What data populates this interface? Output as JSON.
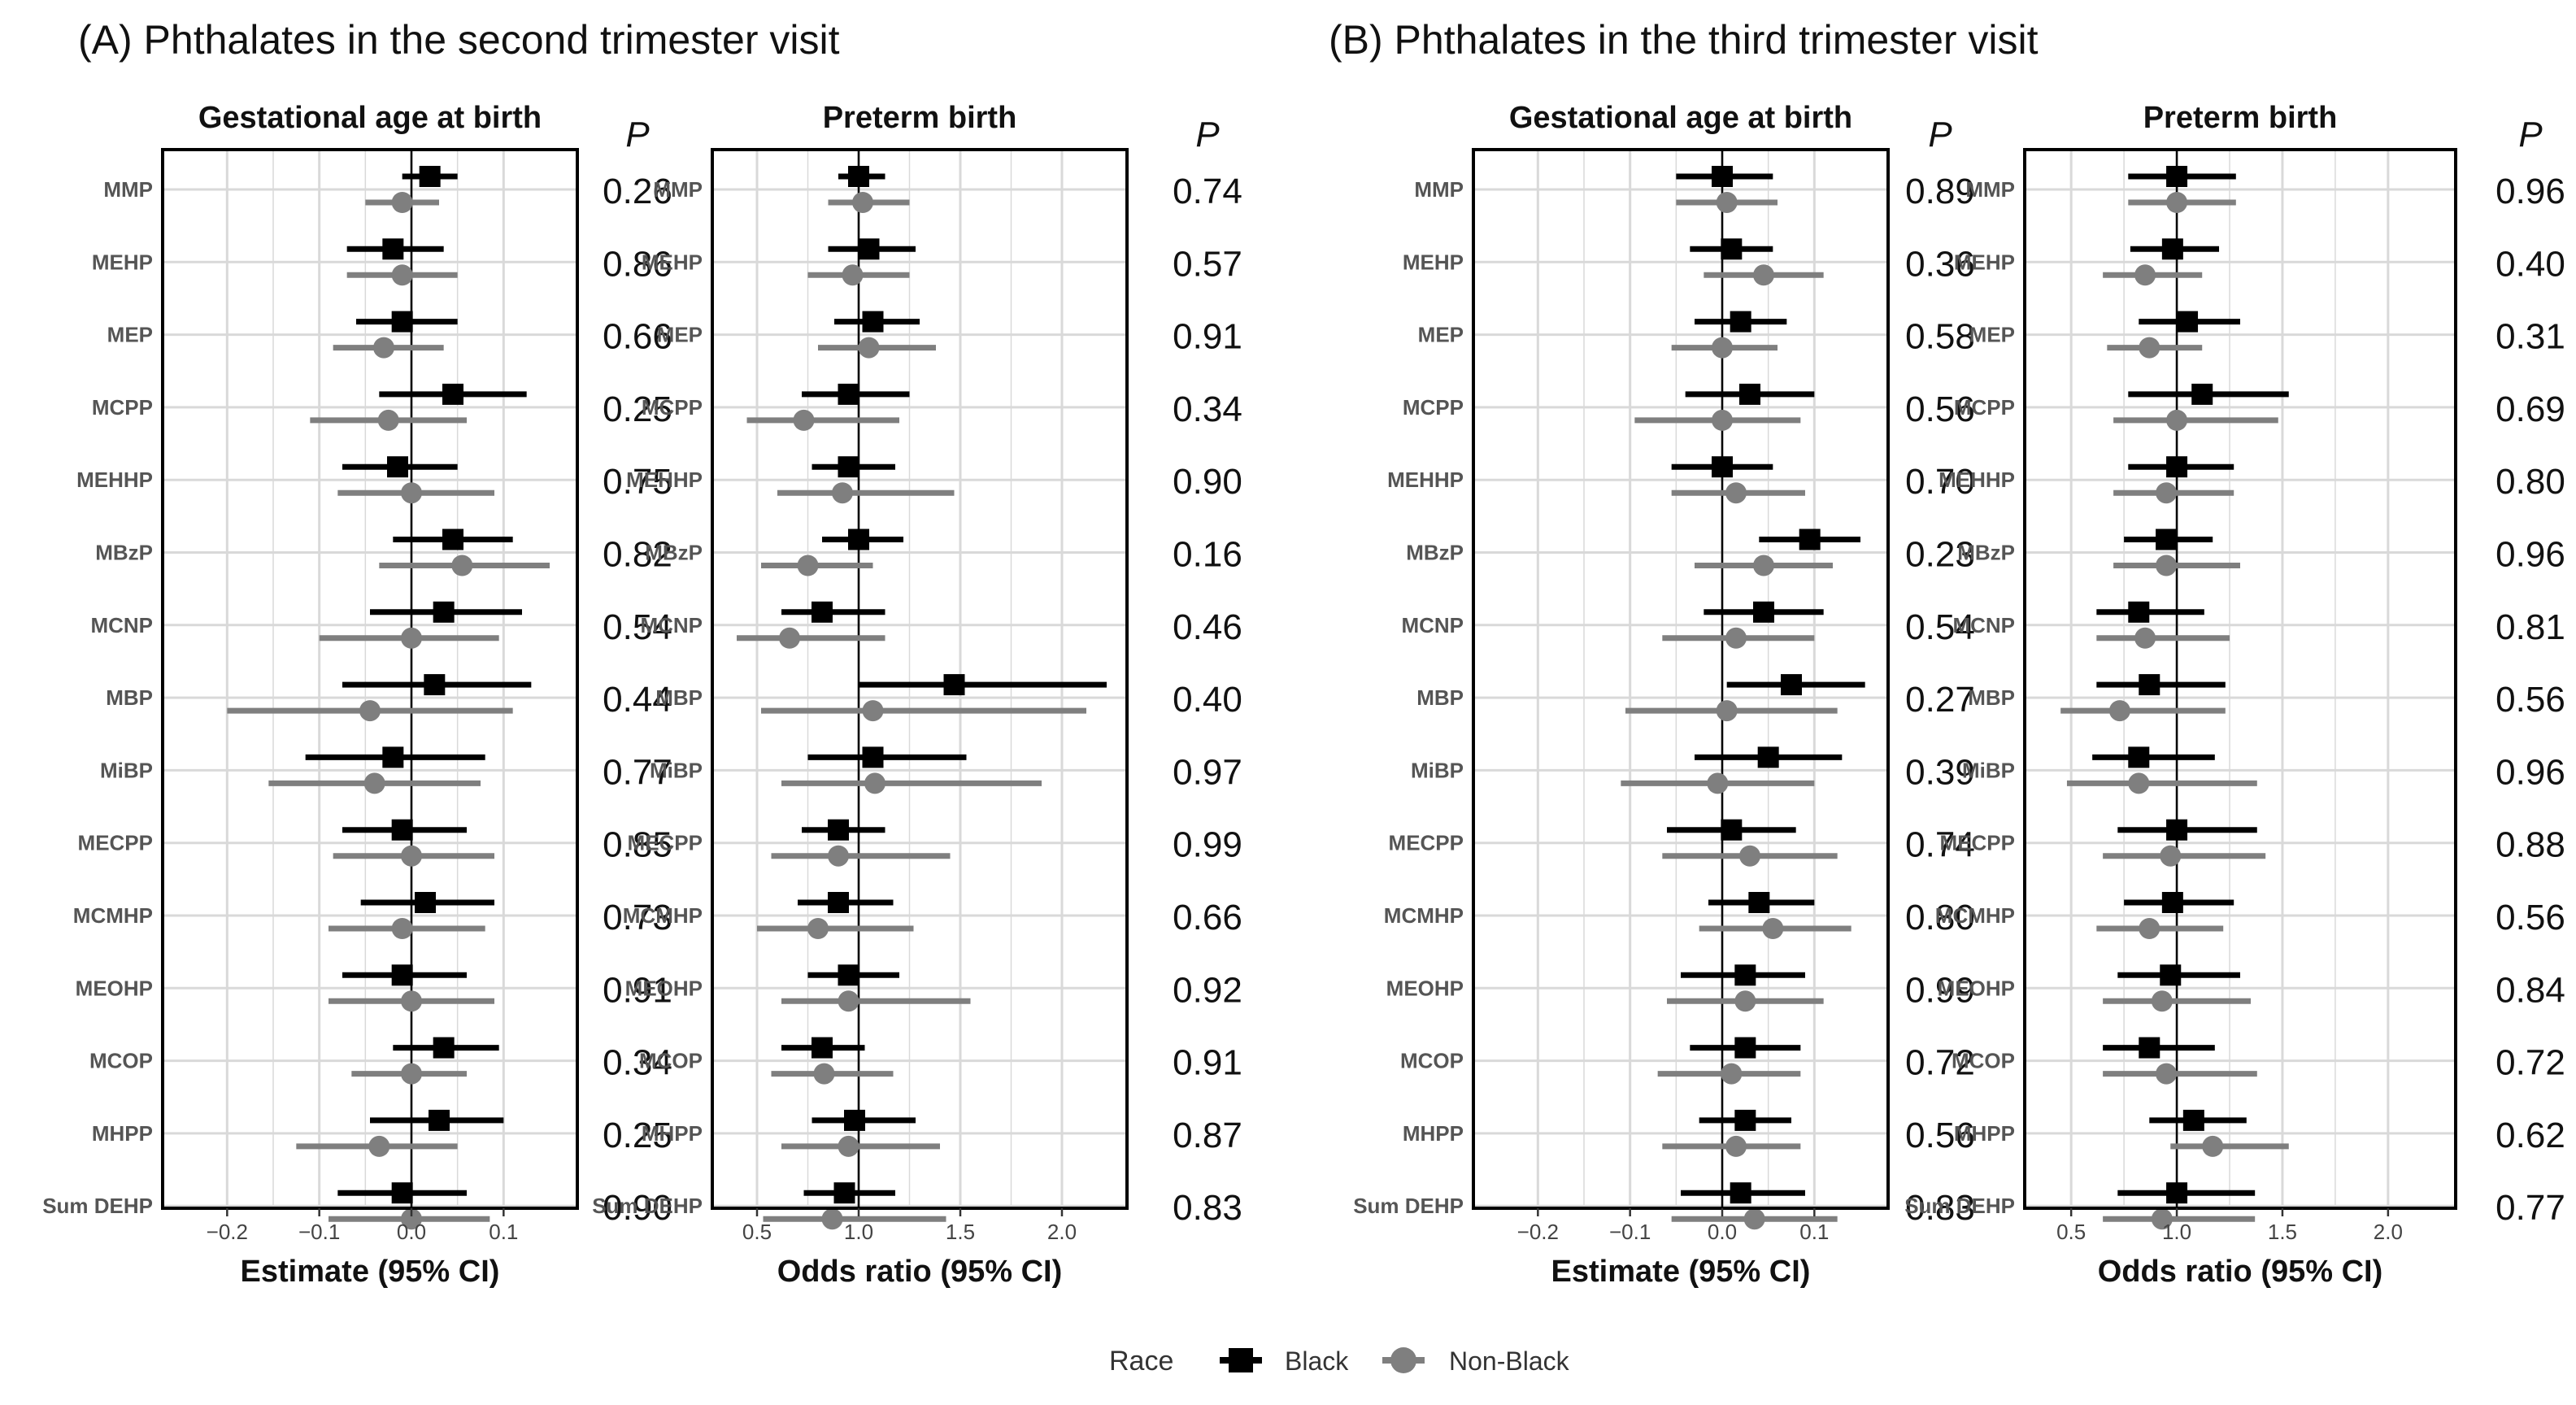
{
  "labels": {
    "panel_a_title": "(A) Phthalates in the second trimester visit",
    "panel_b_title": "(B) Phthalates in the third trimester visit",
    "gest_title": "Gestational age at birth",
    "preterm_title": "Preterm birth",
    "p_header": "P",
    "estimate_xlabel": "Estimate (95% CI)",
    "odds_xlabel": "Odds ratio (95% CI)",
    "legend_title": "Race",
    "legend_black": "Black",
    "legend_nonblack": "Non-Black"
  },
  "colors": {
    "black_series": "#000000",
    "nonblack_series": "#7f7f7f",
    "grid": "#d9d9d9"
  },
  "chart_data": [
    {
      "type": "forest",
      "panel": "A",
      "title": "Gestational age at birth",
      "xlabel": "Estimate (95% CI)",
      "xlim": [
        -0.27,
        0.18
      ],
      "xticks": [
        -0.2,
        -0.1,
        0.0,
        0.1
      ],
      "xtick_labels": [
        "−0.2",
        "−0.1",
        "0.0",
        "0.1"
      ],
      "ref": 0,
      "categories": [
        "MMP",
        "MEHP",
        "MEP",
        "MCPP",
        "MEHHP",
        "MBzP",
        "MCNP",
        "MBP",
        "MiBP",
        "MECPP",
        "MCMHP",
        "MEOHP",
        "MCOP",
        "MHPP",
        "Sum DEHP"
      ],
      "series": [
        {
          "name": "Black",
          "est": [
            0.02,
            -0.02,
            -0.01,
            0.045,
            -0.015,
            0.045,
            0.035,
            0.025,
            -0.02,
            -0.01,
            0.015,
            -0.01,
            0.035,
            0.03,
            -0.01
          ],
          "lo": [
            -0.01,
            -0.07,
            -0.06,
            -0.035,
            -0.075,
            -0.02,
            -0.045,
            -0.075,
            -0.115,
            -0.075,
            -0.055,
            -0.075,
            -0.02,
            -0.045,
            -0.08
          ],
          "hi": [
            0.05,
            0.035,
            0.05,
            0.125,
            0.05,
            0.11,
            0.12,
            0.13,
            0.08,
            0.06,
            0.09,
            0.06,
            0.095,
            0.1,
            0.06
          ]
        },
        {
          "name": "Non-Black",
          "est": [
            -0.01,
            -0.01,
            -0.03,
            -0.025,
            0.0,
            0.055,
            0.0,
            -0.045,
            -0.04,
            0.0,
            -0.01,
            0.0,
            0.0,
            -0.035,
            0.0
          ],
          "lo": [
            -0.05,
            -0.07,
            -0.085,
            -0.11,
            -0.08,
            -0.035,
            -0.1,
            -0.2,
            -0.155,
            -0.085,
            -0.09,
            -0.09,
            -0.065,
            -0.125,
            -0.09
          ],
          "hi": [
            0.03,
            0.05,
            0.035,
            0.06,
            0.09,
            0.15,
            0.095,
            0.11,
            0.075,
            0.09,
            0.08,
            0.09,
            0.06,
            0.05,
            0.085
          ]
        }
      ],
      "p": [
        "0.26",
        "0.86",
        "0.66",
        "0.25",
        "0.75",
        "0.82",
        "0.54",
        "0.44",
        "0.77",
        "0.85",
        "0.73",
        "0.91",
        "0.34",
        "0.25",
        "0.90"
      ]
    },
    {
      "type": "forest",
      "panel": "A",
      "title": "Preterm birth",
      "xlabel": "Odds ratio (95% CI)",
      "xlim": [
        0.28,
        2.32
      ],
      "xticks": [
        0.5,
        1.0,
        1.5,
        2.0
      ],
      "xtick_labels": [
        "0.5",
        "1.0",
        "1.5",
        "2.0"
      ],
      "ref": 1,
      "categories": [
        "MMP",
        "MEHP",
        "MEP",
        "MCPP",
        "MEHHP",
        "MBzP",
        "MCNP",
        "MBP",
        "MiBP",
        "MECPP",
        "MCMHP",
        "MEOHP",
        "MCOP",
        "MHPP",
        "Sum DEHP"
      ],
      "series": [
        {
          "name": "Black",
          "est": [
            1.0,
            1.05,
            1.07,
            0.95,
            0.95,
            1.0,
            0.82,
            1.47,
            1.07,
            0.9,
            0.9,
            0.95,
            0.82,
            0.98,
            0.93
          ],
          "lo": [
            0.9,
            0.85,
            0.88,
            0.72,
            0.77,
            0.82,
            0.62,
            1.0,
            0.75,
            0.72,
            0.7,
            0.75,
            0.62,
            0.77,
            0.73
          ],
          "hi": [
            1.13,
            1.28,
            1.3,
            1.25,
            1.18,
            1.22,
            1.13,
            2.22,
            1.53,
            1.13,
            1.17,
            1.2,
            1.03,
            1.28,
            1.18
          ]
        },
        {
          "name": "Non-Black",
          "est": [
            1.02,
            0.97,
            1.05,
            0.73,
            0.92,
            0.75,
            0.66,
            1.07,
            1.08,
            0.9,
            0.8,
            0.95,
            0.83,
            0.95,
            0.87
          ],
          "lo": [
            0.85,
            0.75,
            0.8,
            0.45,
            0.6,
            0.52,
            0.4,
            0.52,
            0.62,
            0.57,
            0.5,
            0.62,
            0.57,
            0.62,
            0.53
          ],
          "hi": [
            1.25,
            1.25,
            1.38,
            1.2,
            1.47,
            1.07,
            1.13,
            2.12,
            1.9,
            1.45,
            1.27,
            1.55,
            1.17,
            1.4,
            1.43
          ]
        }
      ],
      "p": [
        "0.74",
        "0.57",
        "0.91",
        "0.34",
        "0.90",
        "0.16",
        "0.46",
        "0.40",
        "0.97",
        "0.99",
        "0.66",
        "0.92",
        "0.91",
        "0.87",
        "0.83"
      ]
    },
    {
      "type": "forest",
      "panel": "B",
      "title": "Gestational age at birth",
      "xlabel": "Estimate (95% CI)",
      "xlim": [
        -0.27,
        0.18
      ],
      "xticks": [
        -0.2,
        -0.1,
        0.0,
        0.1
      ],
      "xtick_labels": [
        "−0.2",
        "−0.1",
        "0.0",
        "0.1"
      ],
      "ref": 0,
      "categories": [
        "MMP",
        "MEHP",
        "MEP",
        "MCPP",
        "MEHHP",
        "MBzP",
        "MCNP",
        "MBP",
        "MiBP",
        "MECPP",
        "MCMHP",
        "MEOHP",
        "MCOP",
        "MHPP",
        "Sum DEHP"
      ],
      "series": [
        {
          "name": "Black",
          "est": [
            0.0,
            0.01,
            0.02,
            0.03,
            0.0,
            0.095,
            0.045,
            0.075,
            0.05,
            0.01,
            0.04,
            0.025,
            0.025,
            0.025,
            0.02
          ],
          "lo": [
            -0.05,
            -0.035,
            -0.03,
            -0.04,
            -0.055,
            0.04,
            -0.02,
            0.005,
            -0.03,
            -0.06,
            -0.015,
            -0.045,
            -0.035,
            -0.025,
            -0.045
          ],
          "hi": [
            0.055,
            0.055,
            0.07,
            0.1,
            0.055,
            0.15,
            0.11,
            0.155,
            0.13,
            0.08,
            0.1,
            0.09,
            0.085,
            0.075,
            0.09
          ]
        },
        {
          "name": "Non-Black",
          "est": [
            0.005,
            0.045,
            0.0,
            0.0,
            0.015,
            0.045,
            0.015,
            0.005,
            -0.005,
            0.03,
            0.055,
            0.025,
            0.01,
            0.015,
            0.035
          ],
          "lo": [
            -0.05,
            -0.02,
            -0.055,
            -0.095,
            -0.055,
            -0.03,
            -0.065,
            -0.105,
            -0.11,
            -0.065,
            -0.025,
            -0.06,
            -0.07,
            -0.065,
            -0.055
          ],
          "hi": [
            0.06,
            0.11,
            0.06,
            0.085,
            0.09,
            0.12,
            0.1,
            0.125,
            0.1,
            0.125,
            0.14,
            0.11,
            0.085,
            0.085,
            0.125
          ]
        }
      ],
      "p": [
        "0.89",
        "0.36",
        "0.58",
        "0.56",
        "0.70",
        "0.23",
        "0.54",
        "0.27",
        "0.39",
        "0.74",
        "0.80",
        "0.99",
        "0.72",
        "0.56",
        "0.83"
      ]
    },
    {
      "type": "forest",
      "panel": "B",
      "title": "Preterm birth",
      "xlabel": "Odds ratio (95% CI)",
      "xlim": [
        0.28,
        2.32
      ],
      "xticks": [
        0.5,
        1.0,
        1.5,
        2.0
      ],
      "xtick_labels": [
        "0.5",
        "1.0",
        "1.5",
        "2.0"
      ],
      "ref": 1,
      "categories": [
        "MMP",
        "MEHP",
        "MEP",
        "MCPP",
        "MEHHP",
        "MBzP",
        "MCNP",
        "MBP",
        "MiBP",
        "MECPP",
        "MCMHP",
        "MEOHP",
        "MCOP",
        "MHPP",
        "Sum DEHP"
      ],
      "series": [
        {
          "name": "Black",
          "est": [
            1.0,
            0.98,
            1.05,
            1.12,
            1.0,
            0.95,
            0.82,
            0.87,
            0.82,
            1.0,
            0.98,
            0.97,
            0.87,
            1.08,
            1.0
          ],
          "lo": [
            0.77,
            0.78,
            0.82,
            0.77,
            0.77,
            0.75,
            0.62,
            0.62,
            0.6,
            0.72,
            0.75,
            0.72,
            0.65,
            0.87,
            0.72
          ],
          "hi": [
            1.28,
            1.2,
            1.3,
            1.53,
            1.27,
            1.17,
            1.13,
            1.23,
            1.18,
            1.38,
            1.27,
            1.3,
            1.18,
            1.33,
            1.37
          ]
        },
        {
          "name": "Non-Black",
          "est": [
            1.0,
            0.85,
            0.87,
            1.0,
            0.95,
            0.95,
            0.85,
            0.73,
            0.82,
            0.97,
            0.87,
            0.93,
            0.95,
            1.17,
            0.93
          ],
          "lo": [
            0.77,
            0.65,
            0.67,
            0.7,
            0.7,
            0.7,
            0.62,
            0.45,
            0.48,
            0.65,
            0.62,
            0.65,
            0.65,
            0.97,
            0.65
          ],
          "hi": [
            1.28,
            1.12,
            1.12,
            1.48,
            1.27,
            1.3,
            1.25,
            1.23,
            1.38,
            1.42,
            1.22,
            1.35,
            1.38,
            1.53,
            1.37
          ]
        }
      ],
      "p": [
        "0.96",
        "0.40",
        "0.31",
        "0.69",
        "0.80",
        "0.96",
        "0.81",
        "0.56",
        "0.96",
        "0.88",
        "0.56",
        "0.84",
        "0.72",
        "0.62",
        "0.77"
      ]
    }
  ]
}
